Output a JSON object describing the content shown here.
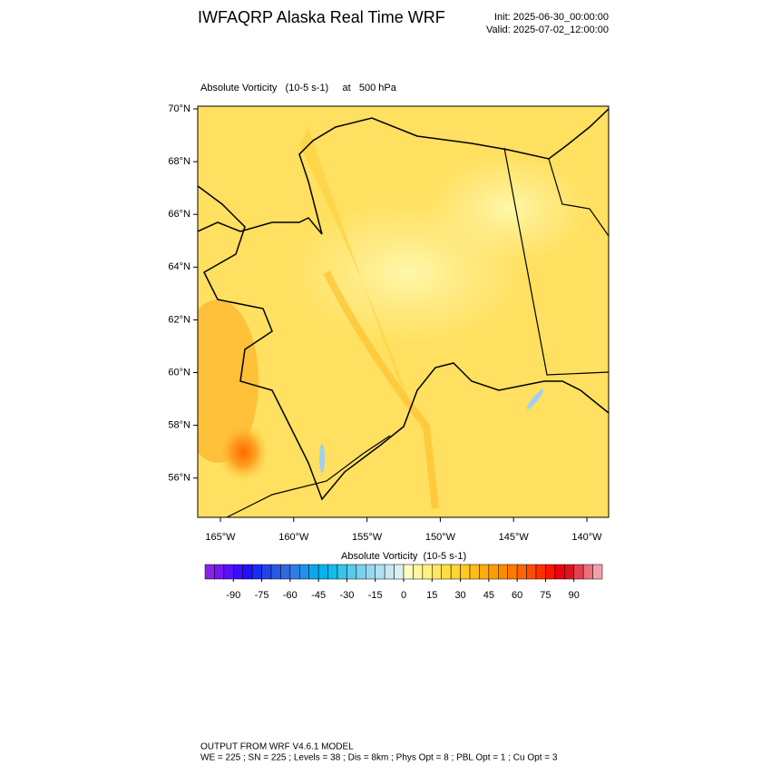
{
  "header": {
    "title": "IWFAQRP Alaska Real Time WRF",
    "init": "Init: 2025-06-30_00:00:00",
    "valid": "Valid: 2025-07-02_12:00:00"
  },
  "map": {
    "subtitle": "Absolute Vorticity   (10-5 s-1)     at   500 hPa",
    "lat_labels": [
      "70°N",
      "68°N",
      "66°N",
      "64°N",
      "62°N",
      "60°N",
      "58°N",
      "56°N"
    ],
    "lon_labels": [
      "165°W",
      "160°W",
      "155°W",
      "150°W",
      "145°W",
      "140°W"
    ]
  },
  "colorbar": {
    "title": "Absolute Vorticity  (10-5 s-1)",
    "lim": [
      -105,
      105
    ],
    "ticks": [
      -90,
      -75,
      -60,
      -45,
      -30,
      -15,
      0,
      15,
      30,
      45,
      60,
      75,
      90
    ],
    "colors": [
      "#8a22e6",
      "#7418f0",
      "#5a10f8",
      "#3c0cff",
      "#2010ff",
      "#1a2cf4",
      "#2244ec",
      "#2a58e4",
      "#3068de",
      "#2e7ce6",
      "#1e92ec",
      "#0aa6f0",
      "#00b4ee",
      "#14bcea",
      "#36c4ea",
      "#58cbec",
      "#78d2ee",
      "#96d8f0",
      "#b0e0f2",
      "#c8e8f2",
      "#dcf0f4",
      "#fffcc0",
      "#fff7a0",
      "#fff080",
      "#ffe860",
      "#ffdf40",
      "#ffd530",
      "#ffca20",
      "#ffbc14",
      "#ffac0c",
      "#ff9c04",
      "#ff8a00",
      "#ff7800",
      "#ff6400",
      "#ff4c00",
      "#ff3000",
      "#ff1400",
      "#f00010",
      "#dc141e",
      "#e44050",
      "#ee7080",
      "#f4a0a8"
    ]
  },
  "footer": {
    "line1": "OUTPUT FROM WRF V4.6.1 MODEL",
    "line2": "WE = 225 ; SN = 225 ; Levels = 38 ; Dis = 8km ; Phys Opt = 8 ; PBL Opt = 1 ; Cu Opt = 3"
  }
}
